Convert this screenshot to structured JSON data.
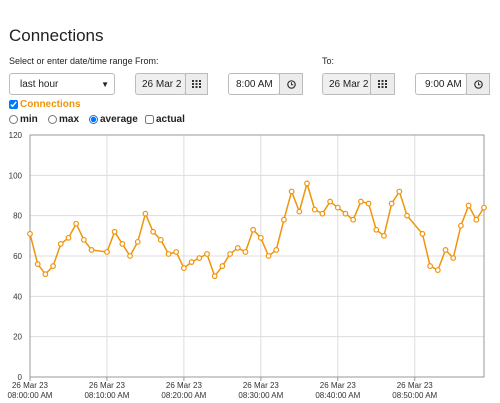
{
  "page": {
    "title": "Connections",
    "range_label": "Select or enter date/time range",
    "range_select": "last hour",
    "from_label": "From:",
    "from_date": "26 Mar 2",
    "from_time": "8:00 AM",
    "to_label": "To:",
    "to_date": "26 Mar 2",
    "to_time": "9:00 AM",
    "options": [
      "min",
      "max",
      "average",
      "actual"
    ],
    "selected_option": "average"
  },
  "chart_data": {
    "type": "line",
    "x": [
      "08:00:00",
      "08:01:00",
      "08:02:00",
      "08:03:00",
      "08:04:00",
      "08:05:00",
      "08:06:00",
      "08:07:00",
      "08:08:00",
      "08:10:00",
      "08:11:00",
      "08:12:00",
      "08:13:00",
      "08:14:00",
      "08:15:00",
      "08:16:00",
      "08:17:00",
      "08:18:00",
      "08:19:00",
      "08:20:00",
      "08:21:00",
      "08:22:00",
      "08:23:00",
      "08:24:00",
      "08:25:00",
      "08:26:00",
      "08:27:00",
      "08:28:00",
      "08:29:00",
      "08:30:00",
      "08:31:00",
      "08:32:00",
      "08:33:00",
      "08:34:00",
      "08:35:00",
      "08:36:00",
      "08:37:00",
      "08:38:00",
      "08:39:00",
      "08:40:00",
      "08:41:00",
      "08:42:00",
      "08:43:00",
      "08:44:00",
      "08:45:00",
      "08:46:00",
      "08:47:00",
      "08:48:00",
      "08:49:00",
      "08:51:00",
      "08:52:00",
      "08:53:00",
      "08:54:00",
      "08:55:00",
      "08:56:00",
      "08:57:00",
      "08:58:00",
      "08:59:00"
    ],
    "series": [
      {
        "name": "Connections",
        "color": "#f0940a",
        "values": [
          71,
          56,
          51,
          55,
          66,
          69,
          76,
          68,
          63,
          62,
          72,
          66,
          60,
          67,
          81,
          72,
          68,
          61,
          62,
          54,
          57,
          59,
          61,
          50,
          55,
          61,
          64,
          62,
          73,
          69,
          60,
          63,
          78,
          92,
          82,
          96,
          83,
          81,
          87,
          84,
          81,
          78,
          87,
          86,
          73,
          70,
          86,
          92,
          80,
          71,
          55,
          53,
          63,
          59,
          75,
          85,
          78,
          84
        ]
      }
    ],
    "xlim": [
      "08:00:00",
      "08:59:00"
    ],
    "xticks": [
      {
        "value": "08:00:00",
        "label": "26 Mar 23 08:00:00 AM"
      },
      {
        "value": "08:10:00",
        "label": "26 Mar 23 08:10:00 AM"
      },
      {
        "value": "08:20:00",
        "label": "26 Mar 23 08:20:00 AM"
      },
      {
        "value": "08:30:00",
        "label": "26 Mar 23 08:30:00 AM"
      },
      {
        "value": "08:40:00",
        "label": "26 Mar 23 08:40:00 AM"
      },
      {
        "value": "08:50:00",
        "label": "26 Mar 23 08:50:00 AM"
      }
    ],
    "ylim": [
      0,
      120
    ],
    "yticks": [
      0,
      20,
      40,
      60,
      80,
      100,
      120
    ],
    "grid": true
  }
}
